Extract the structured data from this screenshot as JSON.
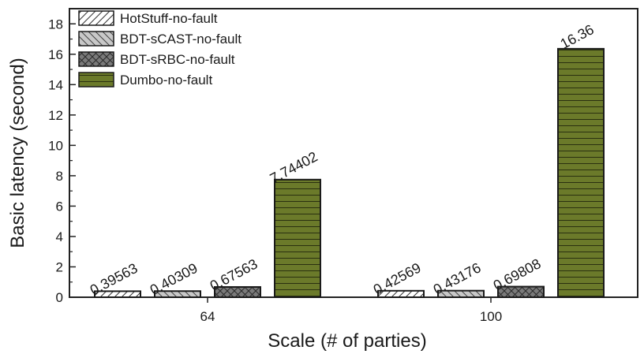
{
  "chart_data": {
    "type": "bar",
    "categories": [
      "64",
      "100"
    ],
    "series": [
      {
        "name": "HotStuff-no-fault",
        "values": [
          0.39563,
          0.42569
        ],
        "labels": [
          "0.39563",
          "0.42569"
        ],
        "pattern": "diag-light",
        "color": "#ffffff"
      },
      {
        "name": "BDT-sCAST-no-fault",
        "values": [
          0.40309,
          0.43176
        ],
        "labels": [
          "0.40309",
          "0.43176"
        ],
        "pattern": "diag-back",
        "color": "#c8c8c8"
      },
      {
        "name": "BDT-sRBC-no-fault",
        "values": [
          0.67563,
          0.69808
        ],
        "labels": [
          "0.67563",
          "0.69808"
        ],
        "pattern": "cross",
        "color": "#7a7a7a"
      },
      {
        "name": "Dumbo-no-fault",
        "values": [
          7.74402,
          16.36
        ],
        "labels": [
          "7.74402",
          "16.36"
        ],
        "pattern": "horizontal",
        "color": "#6b7a2a"
      }
    ],
    "xlabel": "Scale (# of parties)",
    "ylabel": "Basic latency (second)",
    "ylim": [
      0,
      19
    ],
    "yticks": [
      0,
      2,
      4,
      6,
      8,
      10,
      12,
      14,
      16,
      18
    ],
    "grid": false,
    "legend_position": "top-left"
  }
}
